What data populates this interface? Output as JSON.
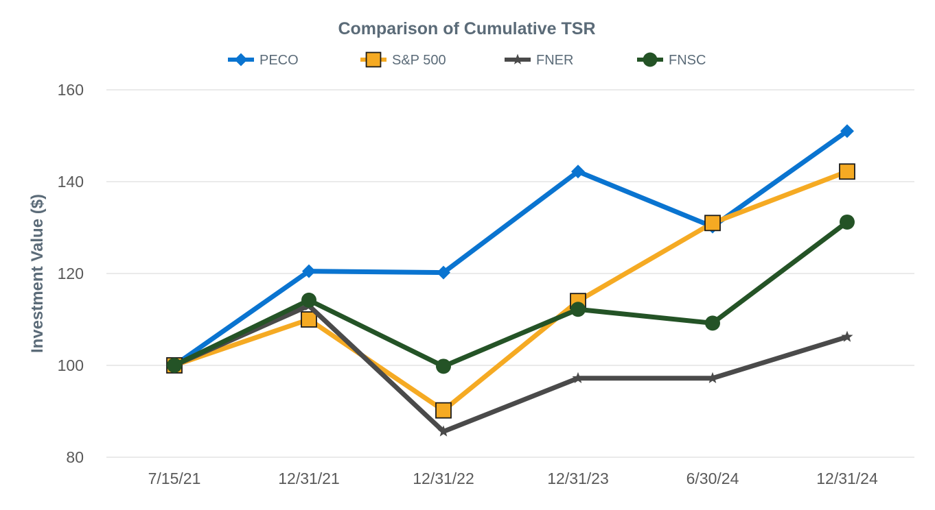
{
  "chart_data": {
    "type": "line",
    "title": "Comparison of Cumulative TSR",
    "xlabel": "",
    "ylabel": "Investment Value ($)",
    "categories": [
      "7/15/21",
      "12/31/21",
      "12/31/22",
      "12/31/23",
      "6/30/24",
      "12/31/24"
    ],
    "ylim": [
      80,
      160
    ],
    "yticks": [
      "80",
      "100",
      "120",
      "140",
      "160"
    ],
    "grid": true,
    "legend_position": "top",
    "series": [
      {
        "name": "PECO",
        "values": [
          100,
          120.5,
          120.2,
          142.2,
          130.2,
          151
        ],
        "color": "#0a74d0",
        "marker": "diamond"
      },
      {
        "name": "S&P 500",
        "values": [
          100,
          110,
          90.2,
          114,
          131,
          142.2
        ],
        "color": "#f5aa23",
        "marker": "square"
      },
      {
        "name": "FNER",
        "values": [
          100,
          113,
          85.6,
          97.2,
          97.2,
          106.2
        ],
        "color": "#4a4a4a",
        "marker": "star"
      },
      {
        "name": "FNSC",
        "values": [
          100,
          114.2,
          99.8,
          112.2,
          109.2,
          131.2
        ],
        "color": "#245326",
        "marker": "circle"
      }
    ]
  }
}
